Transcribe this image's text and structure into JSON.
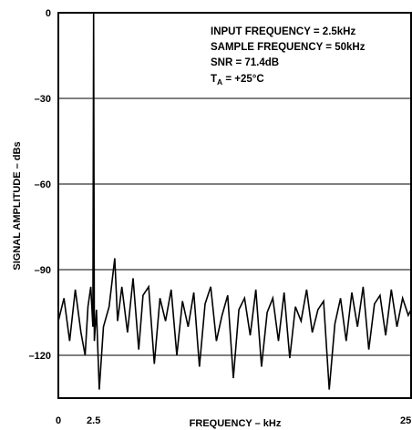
{
  "chart_data": {
    "type": "line",
    "xlabel": "FREQUENCY – kHz",
    "ylabel": "SIGNAL AMPLITUDE – dBs",
    "xlim": [
      0,
      25
    ],
    "ylim": [
      -135,
      0
    ],
    "x_ticks": [
      {
        "value": 0,
        "label": "0"
      },
      {
        "value": 2.5,
        "label": "2.5"
      },
      {
        "value": 25,
        "label": "25"
      }
    ],
    "y_ticks": [
      {
        "value": 0,
        "label": "0"
      },
      {
        "value": -30,
        "label": "–30"
      },
      {
        "value": -60,
        "label": "–60"
      },
      {
        "value": -90,
        "label": "–90"
      },
      {
        "value": -120,
        "label": "–120"
      }
    ],
    "grid": "horizontal",
    "annotations": {
      "input_frequency": "INPUT FREQUENCY = 2.5kHz",
      "sample_frequency": "SAMPLE FREQUENCY = 50kHz",
      "snr": "SNR = 71.4dB",
      "ta_symbol": "T",
      "ta_subscript": "A",
      "ta_value": " = +25°C"
    },
    "series": [
      {
        "values": {
          "x": [
            0.0,
            0.4,
            0.8,
            1.2,
            1.6,
            1.9,
            2.1,
            2.3,
            2.45,
            2.5,
            2.55,
            2.7,
            2.9,
            3.2,
            3.6,
            4.0,
            4.2,
            4.5,
            4.9,
            5.3,
            5.7,
            6.0,
            6.4,
            6.8,
            7.2,
            7.6,
            8.0,
            8.4,
            8.8,
            9.2,
            9.6,
            10.0,
            10.4,
            10.8,
            11.2,
            11.6,
            12.0,
            12.4,
            12.8,
            13.2,
            13.6,
            14.0,
            14.4,
            14.8,
            15.2,
            15.6,
            16.0,
            16.4,
            16.8,
            17.2,
            17.6,
            18.0,
            18.4,
            18.8,
            19.2,
            19.6,
            20.0,
            20.4,
            20.8,
            21.2,
            21.6,
            22.0,
            22.4,
            22.8,
            23.2,
            23.6,
            24.0,
            24.4,
            24.8,
            25.0
          ],
          "y": [
            -108,
            -100,
            -115,
            -97,
            -112,
            -120,
            -103,
            -96,
            -110,
            0,
            -115,
            -104,
            -132,
            -110,
            -103,
            -86,
            -108,
            -96,
            -112,
            -93,
            -118,
            -99,
            -96,
            -123,
            -100,
            -108,
            -97,
            -120,
            -101,
            -110,
            -98,
            -124,
            -102,
            -96,
            -115,
            -106,
            -99,
            -128,
            -104,
            -100,
            -113,
            -97,
            -124,
            -105,
            -100,
            -115,
            -98,
            -121,
            -103,
            -108,
            -97,
            -112,
            -104,
            -101,
            -132,
            -109,
            -100,
            -115,
            -98,
            -110,
            -96,
            -118,
            -102,
            -99,
            -113,
            -97,
            -110,
            -100,
            -106,
            -104
          ]
        }
      }
    ]
  }
}
